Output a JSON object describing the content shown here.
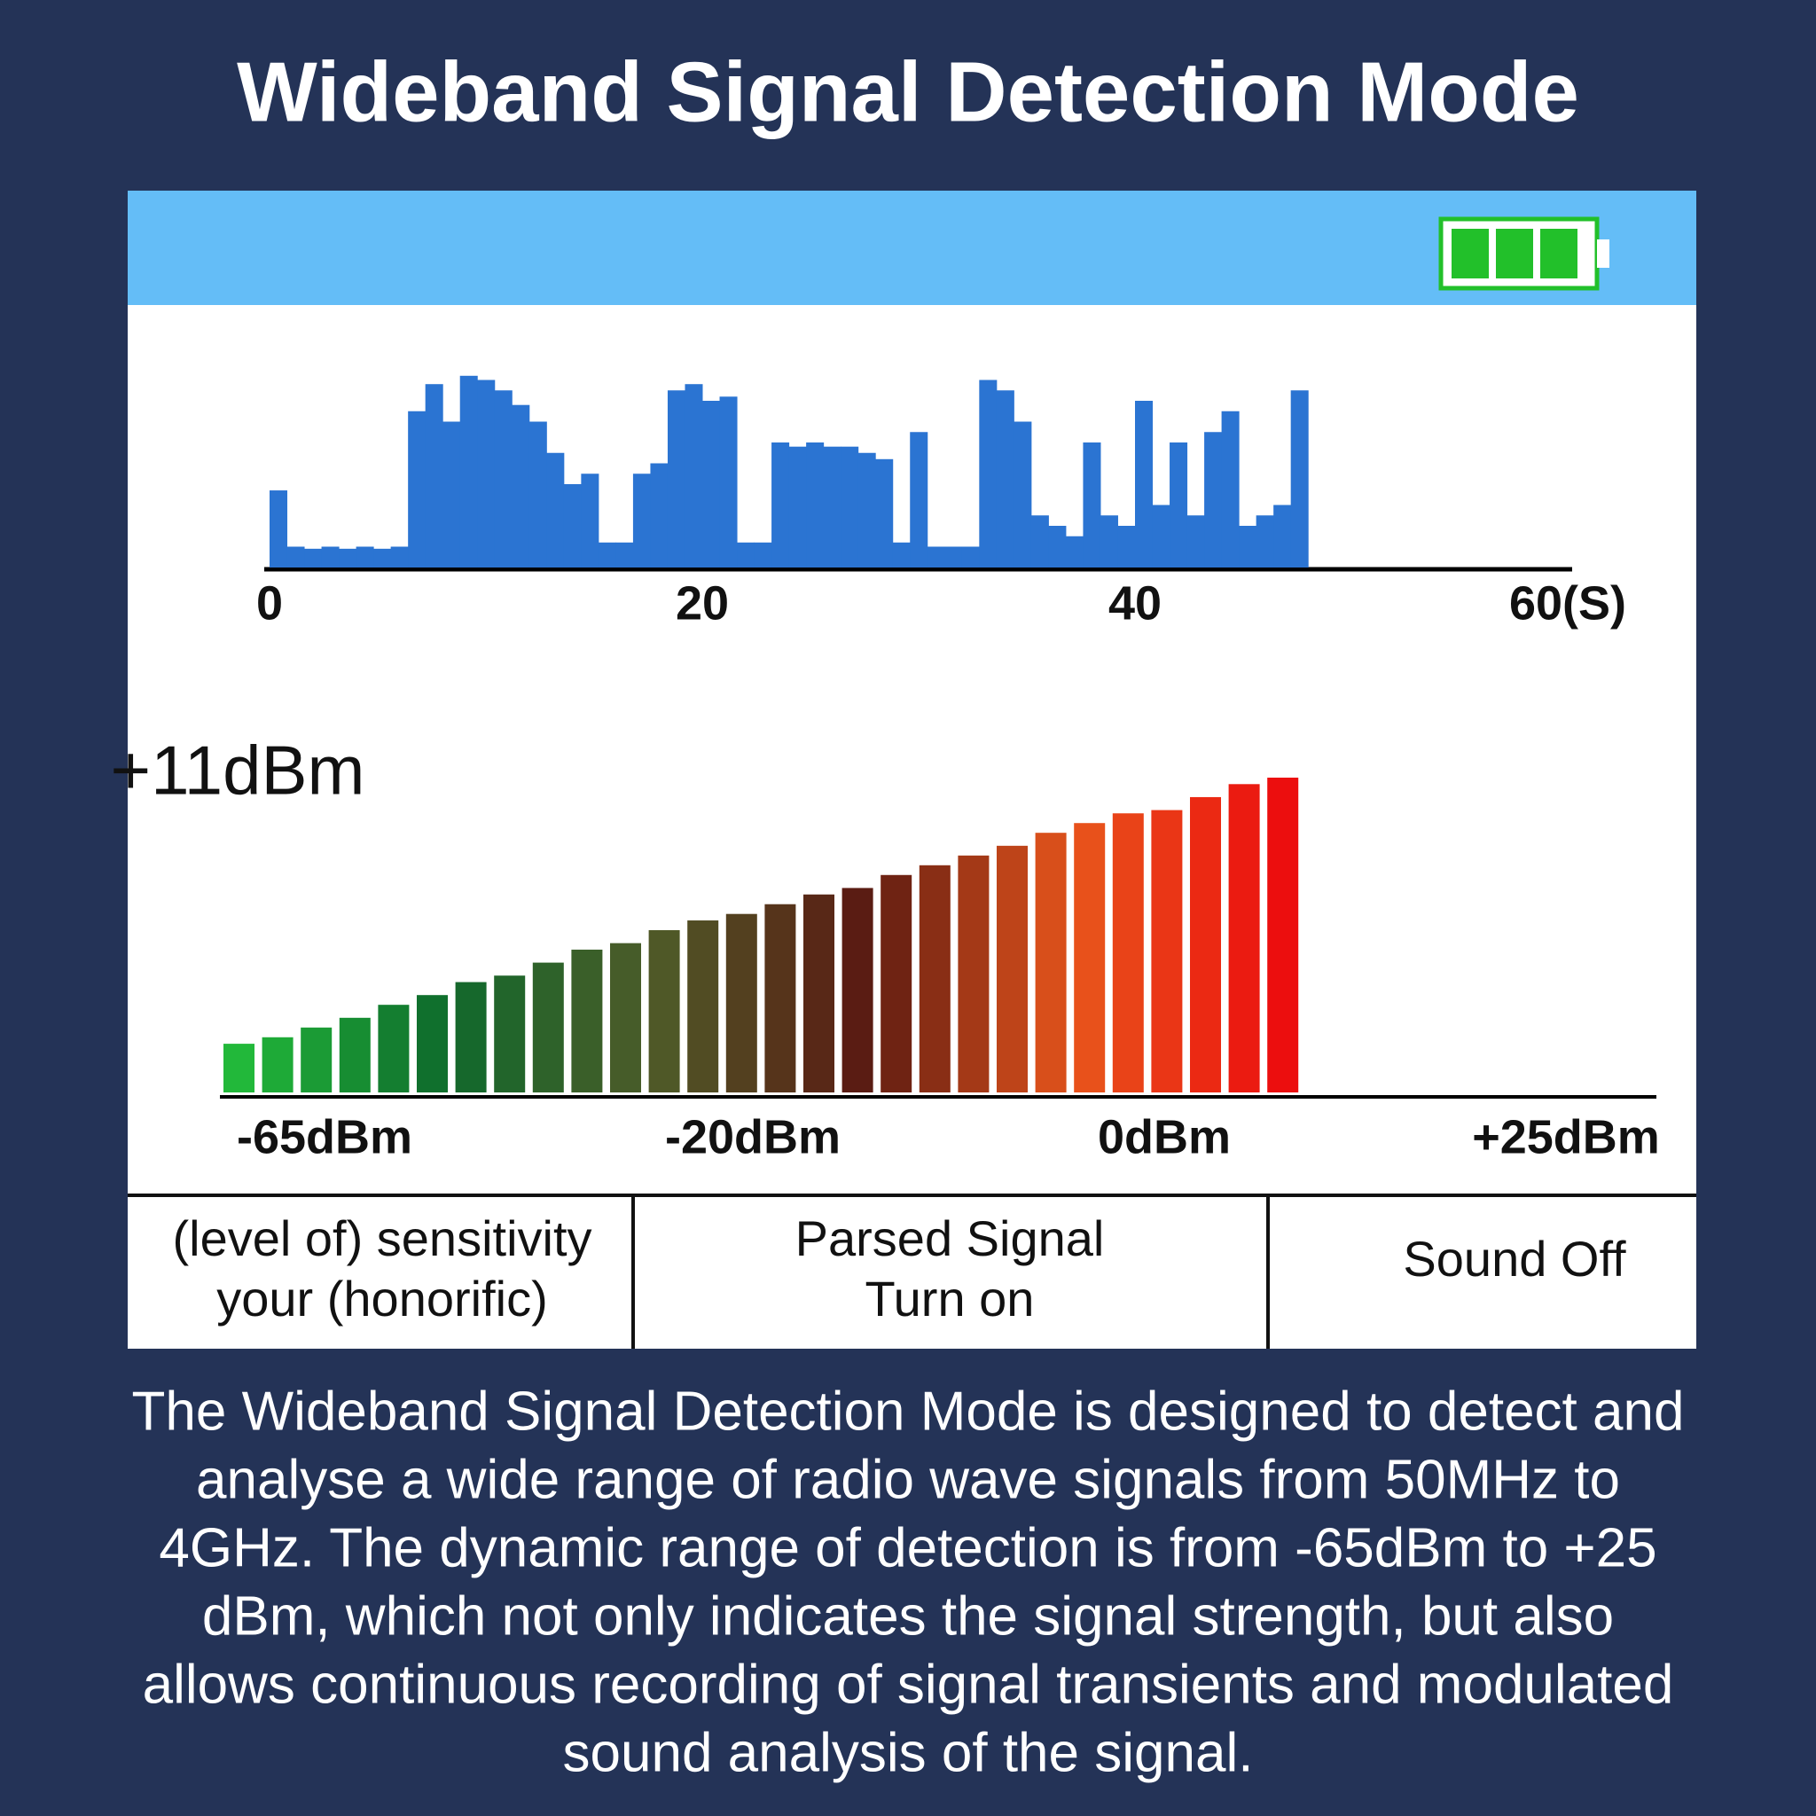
{
  "header": {
    "title": "Wideband Signal Detection Mode"
  },
  "history": {
    "type": "bar",
    "color": "#2b74d2",
    "bins": [
      0,
      0.8,
      1.6,
      2.4,
      3.2,
      4,
      4.8,
      5.6,
      6.4,
      7.2,
      8,
      8.8,
      9.6,
      10.4,
      11.2,
      12,
      12.8,
      13.6,
      14.4,
      15.2,
      16,
      16.8,
      17.6,
      18.4,
      19.2,
      20,
      20.8,
      21.6,
      22.4,
      23.2,
      24,
      24.8,
      25.6,
      26.4,
      27.2,
      28,
      28.8,
      29.6,
      30.4,
      31.2,
      32,
      32.8,
      33.6,
      34.4,
      35.2,
      36,
      36.8,
      37.6,
      38.4,
      39.2,
      40,
      40.8,
      41.6,
      42.4,
      43.2,
      44,
      44.8,
      45.6,
      46.4,
      47.2,
      48
    ],
    "values": [
      37,
      10,
      9,
      10,
      9,
      10,
      9,
      10,
      75,
      88,
      70,
      92,
      90,
      85,
      78,
      70,
      55,
      40,
      45,
      12,
      12,
      45,
      50,
      85,
      88,
      80,
      82,
      12,
      12,
      60,
      58,
      60,
      58,
      58,
      55,
      52,
      12,
      65,
      10,
      10,
      10,
      90,
      85,
      70,
      25,
      20,
      15,
      60,
      25,
      20,
      80,
      30,
      60,
      25,
      65,
      75,
      20,
      25,
      30,
      85
    ],
    "xlim": [
      0,
      60
    ],
    "xticks": [
      0,
      20,
      40,
      {
        "value": 60,
        "label": "60(S)"
      }
    ],
    "ylim": [
      0,
      100
    ]
  },
  "meter": {
    "type": "bar",
    "readout": "+11dBm",
    "values": [
      15,
      17,
      20,
      23,
      27,
      30,
      34,
      36,
      40,
      44,
      46,
      50,
      53,
      55,
      58,
      61,
      63,
      67,
      70,
      73,
      76,
      80,
      83,
      86,
      87,
      91,
      95,
      97
    ],
    "ylim": [
      0,
      100
    ],
    "color_stops": [
      "#22b83a",
      "#0f6a2c",
      "#4f5a28",
      "#5a1a12",
      "#e8561c",
      "#ec0e0e"
    ],
    "tick_labels": [
      "-65dBm",
      "-20dBm",
      "0dBm",
      "+25dBm"
    ]
  },
  "buttons": [
    [
      "(level of) sensitivity",
      "your (honorific)"
    ],
    [
      "Parsed Signal",
      "Turn on"
    ],
    [
      "Sound Off"
    ]
  ],
  "description": {
    "lines": [
      "The Wideband Signal Detection Mode is designed to detect and",
      "analyse a wide range of radio wave signals from 50MHz to",
      "4GHz. The dynamic range of detection is from -65dBm to +25",
      "dBm, which not only indicates the signal strength, but also",
      "allows continuous recording of signal transients and modulated",
      "sound analysis of the signal."
    ]
  }
}
